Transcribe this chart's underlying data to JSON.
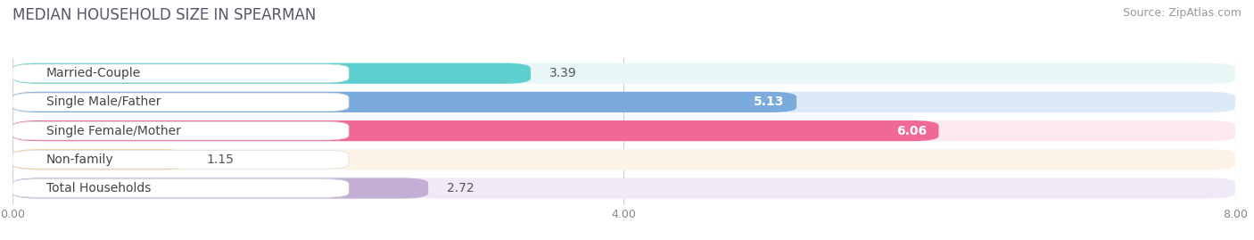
{
  "title": "MEDIAN HOUSEHOLD SIZE IN SPEARMAN",
  "source": "Source: ZipAtlas.com",
  "categories": [
    "Married-Couple",
    "Single Male/Father",
    "Single Female/Mother",
    "Non-family",
    "Total Households"
  ],
  "values": [
    3.39,
    5.13,
    6.06,
    1.15,
    2.72
  ],
  "bar_colors": [
    "#5ecfcf",
    "#7aabdc",
    "#f06898",
    "#f5c99a",
    "#c3aed6"
  ],
  "bar_bg_colors": [
    "#e8f6f6",
    "#dce9f6",
    "#fce9f0",
    "#fdf3e7",
    "#f0eaf7"
  ],
  "value_inside": [
    false,
    true,
    true,
    false,
    false
  ],
  "xlim": [
    0,
    8.0
  ],
  "xticks": [
    0.0,
    4.0,
    8.0
  ],
  "xtick_labels": [
    "0.00",
    "4.00",
    "8.00"
  ],
  "title_fontsize": 12,
  "source_fontsize": 9,
  "label_fontsize": 10,
  "value_fontsize": 10,
  "background_color": "#ffffff",
  "row_bg_color": "#f0f0f0"
}
